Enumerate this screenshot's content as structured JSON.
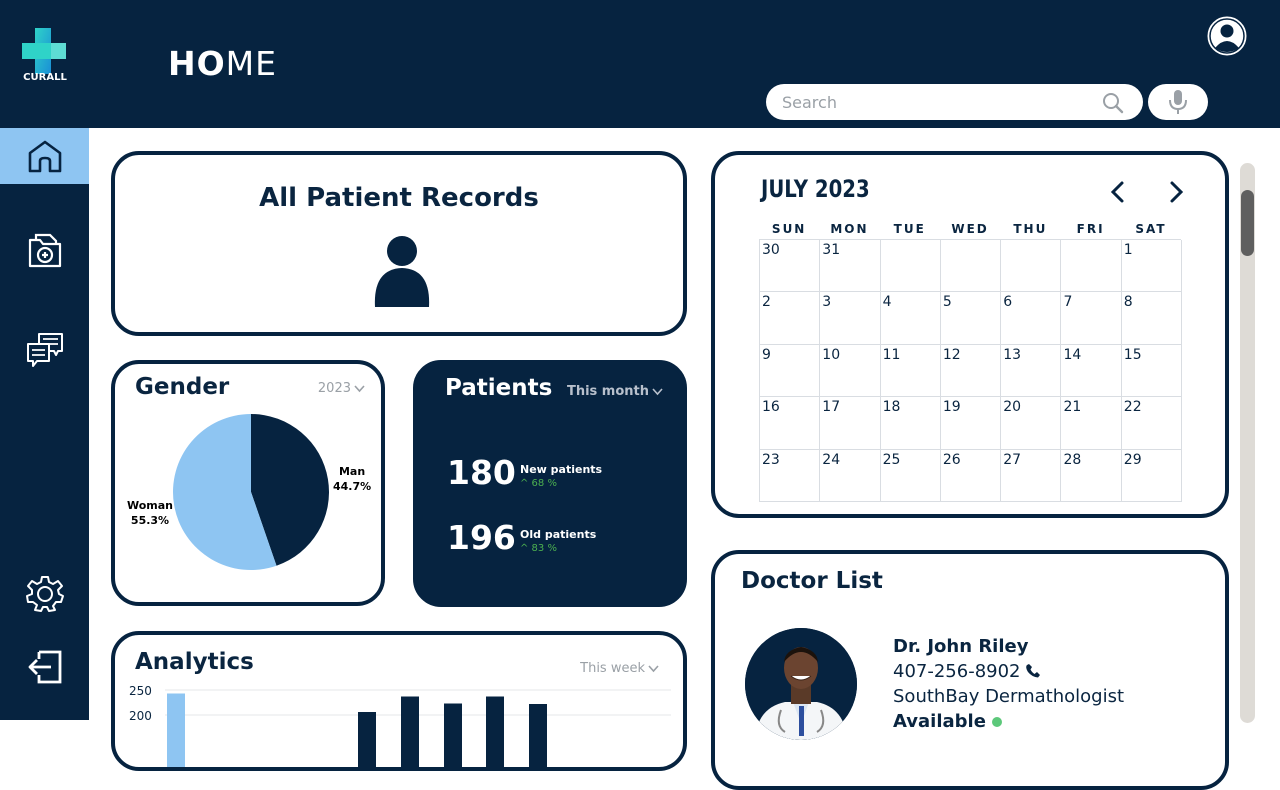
{
  "brand": {
    "name": "CURALL"
  },
  "header": {
    "title_bold": "HO",
    "title_rest": "ME",
    "search_placeholder": "Search"
  },
  "sidebar": {
    "items": [
      {
        "name": "home-icon",
        "active": true
      },
      {
        "name": "patient-file-icon",
        "active": false
      },
      {
        "name": "messages-icon",
        "active": false
      },
      {
        "name": "gear-icon",
        "active": false
      },
      {
        "name": "logout-icon",
        "active": false
      }
    ]
  },
  "records": {
    "title": "All Patient Records"
  },
  "gender": {
    "title": "Gender",
    "year": "2023",
    "man_label": "Man",
    "man_pct": "44.7%",
    "woman_label": "Woman",
    "woman_pct": "55.3%"
  },
  "patients": {
    "title": "Patients",
    "range": "This month",
    "new_count": "180",
    "new_label": "New patients",
    "new_change": "^ 68 %",
    "old_count": "196",
    "old_label": "Old patients",
    "old_change": "^ 83 %"
  },
  "analytics": {
    "title": "Analytics",
    "range": "This week",
    "tick_250": "250",
    "tick_200": "200"
  },
  "calendar": {
    "month": "JULY 2023",
    "dows": [
      "SUN",
      "MON",
      "TUE",
      "WED",
      "THU",
      "FRI",
      "SAT"
    ],
    "days": [
      "30",
      "31",
      "",
      "",
      "",
      "",
      "1",
      "2",
      "3",
      "4",
      "5",
      "6",
      "7",
      "8",
      "9",
      "10",
      "11",
      "12",
      "13",
      "14",
      "15",
      "16",
      "17",
      "18",
      "19",
      "20",
      "21",
      "22",
      "23",
      "24",
      "25",
      "26",
      "27",
      "28",
      "29"
    ]
  },
  "doctors": {
    "title": "Doctor List",
    "items": [
      {
        "name": "Dr. John Riley",
        "phone": "407-256-8902",
        "specialty": "SouthBay Dermathologist",
        "status": "Available"
      }
    ]
  },
  "colors": {
    "navy": "#062340",
    "accent_blue": "#8ec5f2",
    "growth_green": "#4caf50",
    "available_green": "#5cc87a"
  },
  "chart_data": [
    {
      "type": "pie",
      "title": "Gender",
      "categories": [
        "Man",
        "Woman"
      ],
      "values": [
        44.7,
        55.3
      ]
    },
    {
      "type": "bar",
      "title": "Analytics",
      "ylim": [
        0,
        250
      ],
      "yticks": [
        200,
        250
      ],
      "values": [
        243,
        null,
        null,
        null,
        null,
        206,
        237,
        223,
        237,
        222
      ]
    }
  ]
}
